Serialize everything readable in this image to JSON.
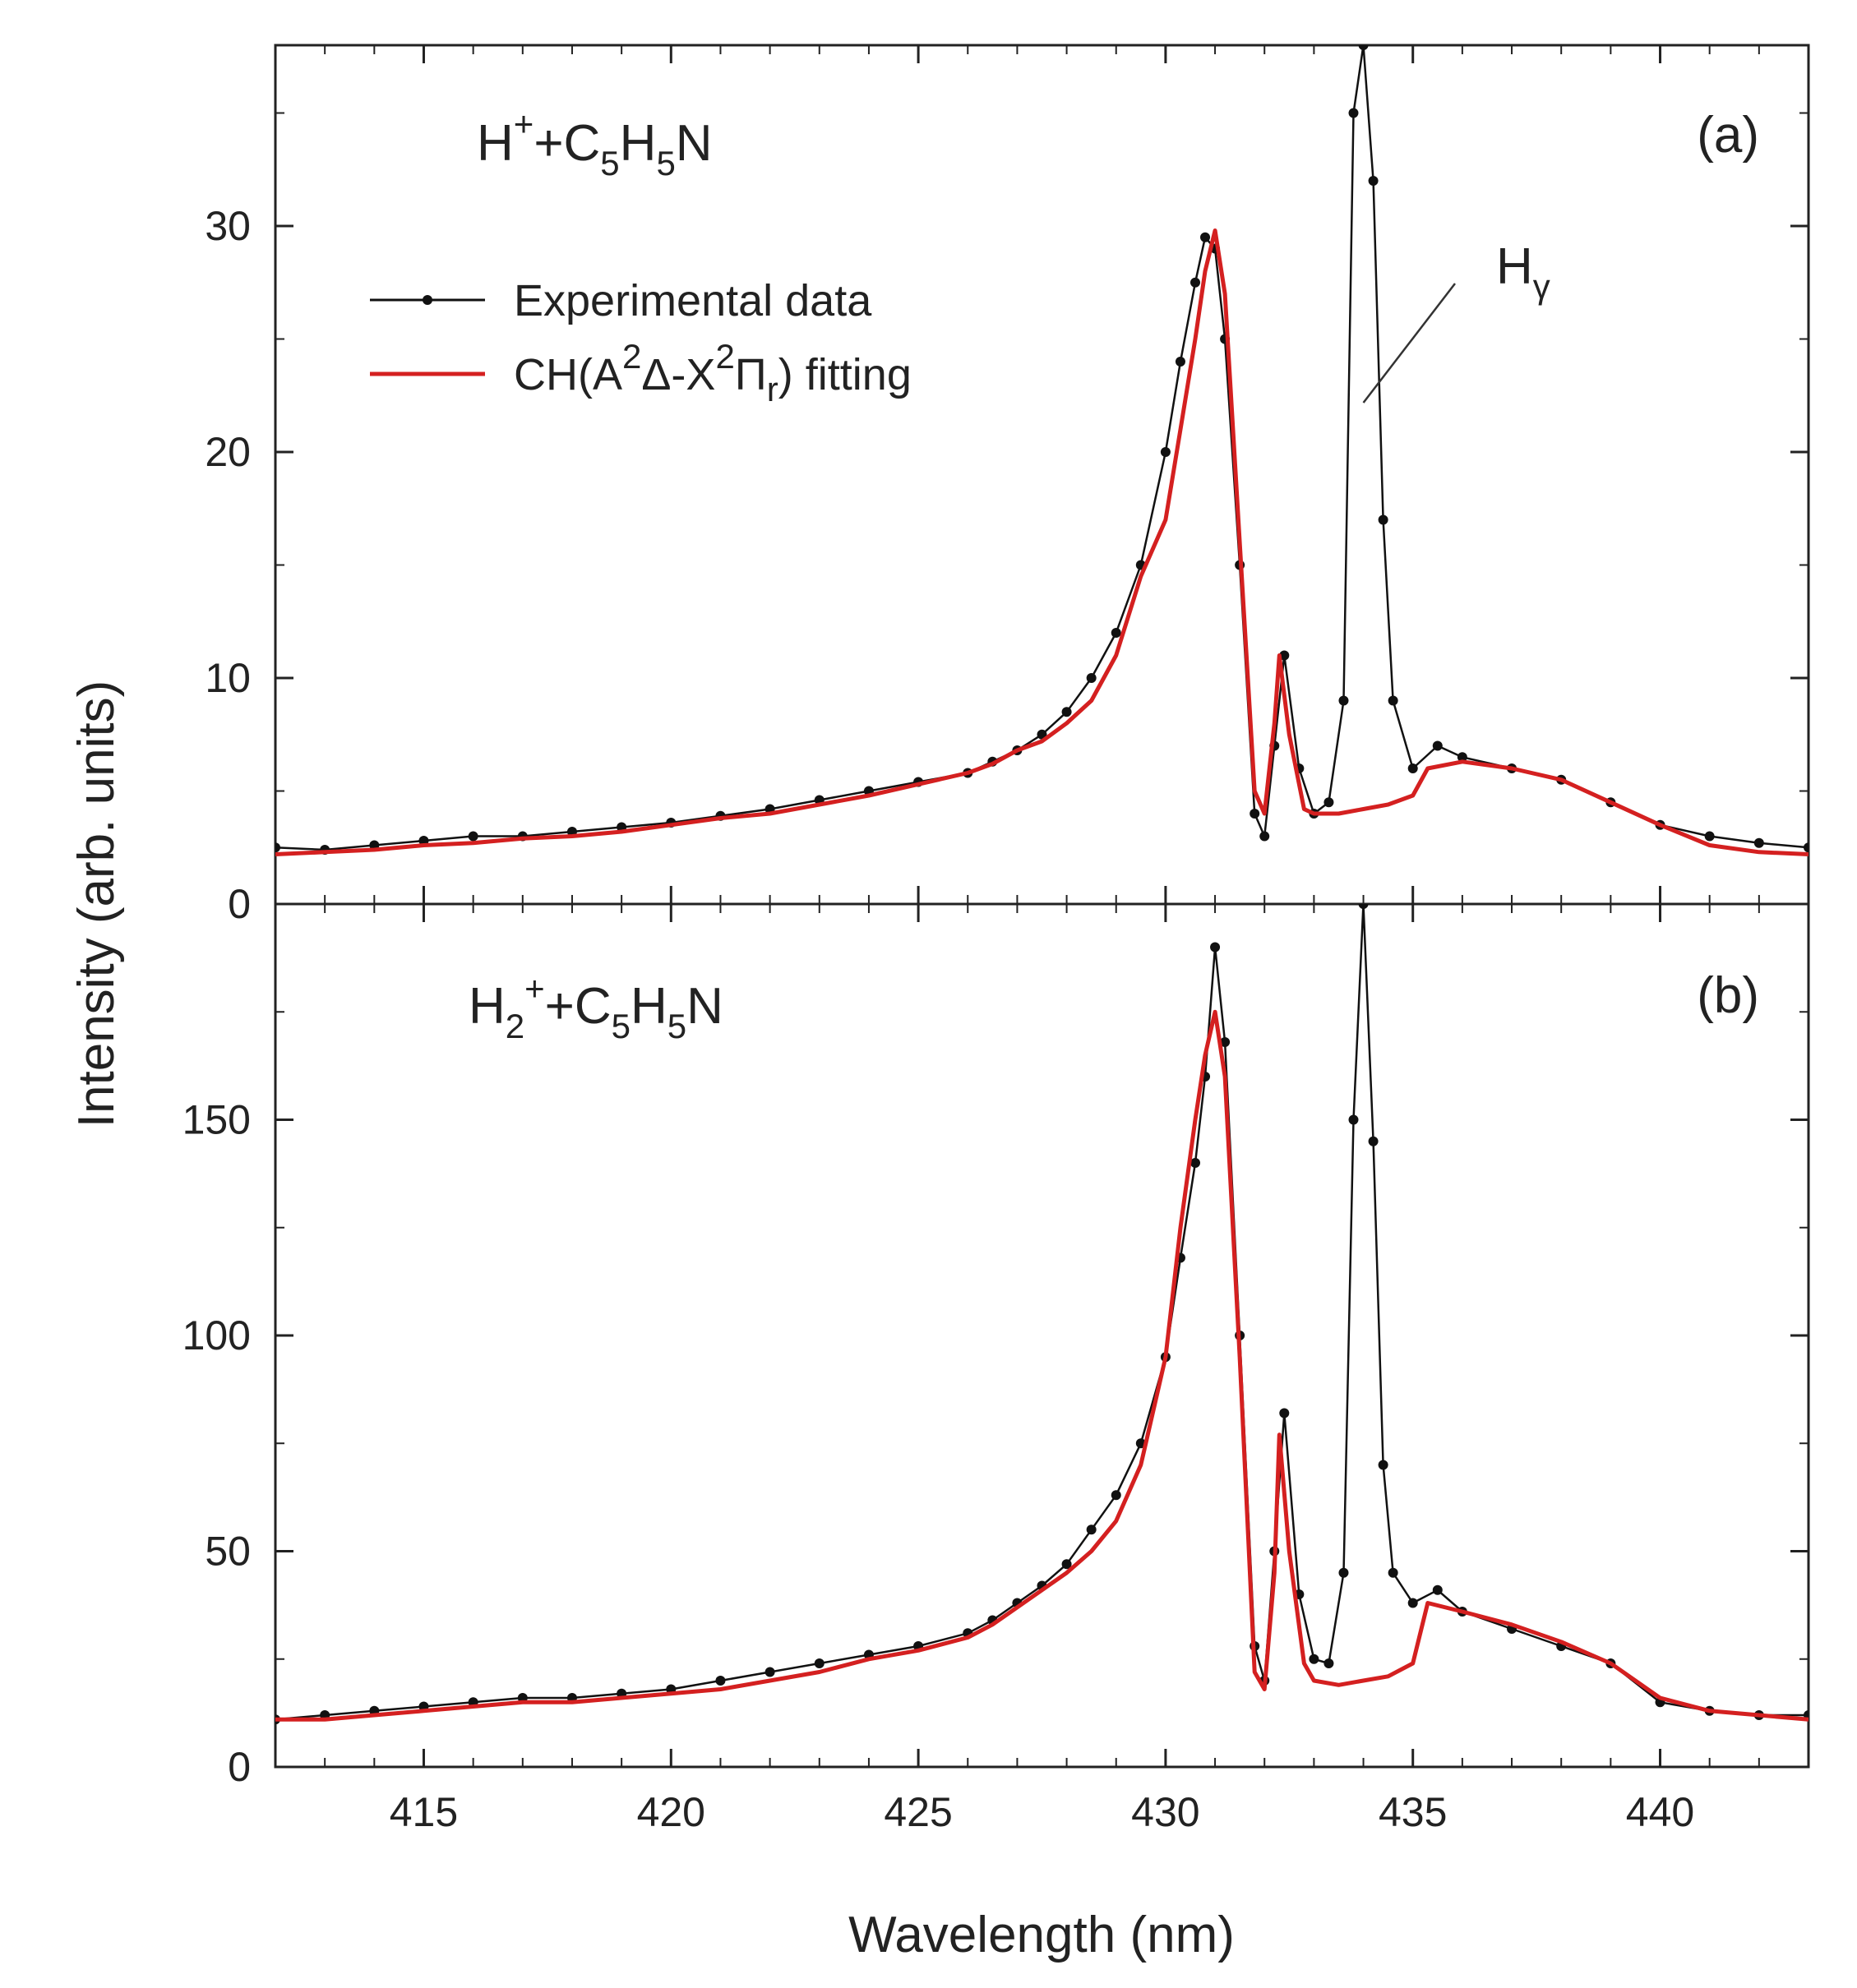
{
  "chart_data": {
    "type": "line",
    "xlabel": "Wavelength (nm)",
    "ylabel": "Intensity (arb. units)",
    "xlim": [
      412,
      443
    ],
    "x_ticks": [
      415,
      420,
      425,
      430,
      435,
      440
    ],
    "legend": {
      "placement": "upper-left of panel (a)",
      "entries": [
        {
          "label": "Experimental data",
          "color": "#111111",
          "style": "line-with-dot-markers"
        },
        {
          "label_parts": [
            "CH(A",
            "2",
            "Δ-X",
            "2",
            "Π",
            "r",
            ") fitting"
          ],
          "color": "#d42020",
          "style": "line"
        }
      ]
    },
    "annotation": {
      "label": "H",
      "subscript": "γ",
      "points_to_x": 434.0
    },
    "panels": [
      {
        "id": "a",
        "label": "(a)",
        "formula_parts": [
          "H",
          "+",
          "+C",
          "5",
          "H",
          "5",
          "N"
        ],
        "ylim": [
          0,
          38
        ],
        "y_ticks": [
          0,
          10,
          20,
          30
        ],
        "series": [
          {
            "name": "Experimental data",
            "color": "#111111",
            "x": [
              412.0,
              413.0,
              414.0,
              415.0,
              416.0,
              417.0,
              418.0,
              419.0,
              420.0,
              421.0,
              422.0,
              423.0,
              424.0,
              425.0,
              426.0,
              426.5,
              427.0,
              427.5,
              428.0,
              428.5,
              429.0,
              429.5,
              430.0,
              430.3,
              430.6,
              430.8,
              431.0,
              431.2,
              431.5,
              431.8,
              432.0,
              432.2,
              432.4,
              432.7,
              433.0,
              433.3,
              433.6,
              433.8,
              434.0,
              434.2,
              434.4,
              434.6,
              435.0,
              435.5,
              436.0,
              437.0,
              438.0,
              439.0,
              440.0,
              441.0,
              442.0,
              443.0
            ],
            "y": [
              2.5,
              2.4,
              2.6,
              2.8,
              3.0,
              3.0,
              3.2,
              3.4,
              3.6,
              3.9,
              4.2,
              4.6,
              5.0,
              5.4,
              5.8,
              6.3,
              6.8,
              7.5,
              8.5,
              10.0,
              12.0,
              15.0,
              20.0,
              24.0,
              27.5,
              29.5,
              29.0,
              25.0,
              15.0,
              4.0,
              3.0,
              7.0,
              11.0,
              6.0,
              4.0,
              4.5,
              9.0,
              35.0,
              38.0,
              32.0,
              17.0,
              9.0,
              6.0,
              7.0,
              6.5,
              6.0,
              5.5,
              4.5,
              3.5,
              3.0,
              2.7,
              2.5
            ]
          },
          {
            "name": "CH(A2Δ-X2Πr) fitting",
            "color": "#d42020",
            "x": [
              412.0,
              413.0,
              414.0,
              415.0,
              416.0,
              417.0,
              418.0,
              419.0,
              420.0,
              421.0,
              422.0,
              423.0,
              424.0,
              425.0,
              426.0,
              426.5,
              427.0,
              427.5,
              428.0,
              428.5,
              429.0,
              429.5,
              430.0,
              430.3,
              430.6,
              430.8,
              431.0,
              431.2,
              431.5,
              431.8,
              432.0,
              432.2,
              432.3,
              432.5,
              432.8,
              433.0,
              433.5,
              434.0,
              434.5,
              435.0,
              435.3,
              436.0,
              437.0,
              438.0,
              439.0,
              440.0,
              441.0,
              442.0,
              443.0
            ],
            "y": [
              2.2,
              2.3,
              2.4,
              2.6,
              2.7,
              2.9,
              3.0,
              3.2,
              3.5,
              3.8,
              4.0,
              4.4,
              4.8,
              5.3,
              5.8,
              6.2,
              6.8,
              7.2,
              8.0,
              9.0,
              11.0,
              14.5,
              17.0,
              21.0,
              25.0,
              28.0,
              29.8,
              27.0,
              16.0,
              5.0,
              4.0,
              8.0,
              11.0,
              7.5,
              4.2,
              4.0,
              4.0,
              4.2,
              4.4,
              4.8,
              6.0,
              6.3,
              6.0,
              5.5,
              4.5,
              3.5,
              2.6,
              2.3,
              2.2
            ]
          }
        ]
      },
      {
        "id": "b",
        "label": "(b)",
        "formula_parts": [
          "H",
          "2",
          "+",
          "+C",
          "5",
          "H",
          "5",
          "N"
        ],
        "ylim": [
          0,
          200
        ],
        "y_ticks": [
          0,
          50,
          100,
          150
        ],
        "series": [
          {
            "name": "Experimental data",
            "color": "#111111",
            "x": [
              412.0,
              413.0,
              414.0,
              415.0,
              416.0,
              417.0,
              418.0,
              419.0,
              420.0,
              421.0,
              422.0,
              423.0,
              424.0,
              425.0,
              426.0,
              426.5,
              427.0,
              427.5,
              428.0,
              428.5,
              429.0,
              429.5,
              430.0,
              430.3,
              430.6,
              430.8,
              431.0,
              431.2,
              431.5,
              431.8,
              432.0,
              432.2,
              432.4,
              432.7,
              433.0,
              433.3,
              433.6,
              433.8,
              434.0,
              434.2,
              434.4,
              434.6,
              435.0,
              435.5,
              436.0,
              437.0,
              438.0,
              439.0,
              440.0,
              441.0,
              442.0,
              443.0
            ],
            "y": [
              11,
              12,
              13,
              14,
              15,
              16,
              16,
              17,
              18,
              20,
              22,
              24,
              26,
              28,
              31,
              34,
              38,
              42,
              47,
              55,
              63,
              75,
              95,
              118,
              140,
              160,
              190,
              168,
              100,
              28,
              20,
              50,
              82,
              40,
              25,
              24,
              45,
              150,
              200,
              145,
              70,
              45,
              38,
              41,
              36,
              32,
              28,
              24,
              15,
              13,
              12,
              12
            ]
          },
          {
            "name": "CH(A2Δ-X2Πr) fitting",
            "color": "#d42020",
            "x": [
              412.0,
              413.0,
              414.0,
              415.0,
              416.0,
              417.0,
              418.0,
              419.0,
              420.0,
              421.0,
              422.0,
              423.0,
              424.0,
              425.0,
              426.0,
              426.5,
              427.0,
              427.5,
              428.0,
              428.5,
              429.0,
              429.5,
              430.0,
              430.3,
              430.6,
              430.8,
              431.0,
              431.2,
              431.5,
              431.8,
              432.0,
              432.2,
              432.3,
              432.5,
              432.8,
              433.0,
              433.5,
              434.0,
              434.5,
              435.0,
              435.3,
              436.0,
              437.0,
              438.0,
              439.0,
              440.0,
              441.0,
              442.0,
              443.0
            ],
            "y": [
              11,
              11,
              12,
              13,
              14,
              15,
              15,
              16,
              17,
              18,
              20,
              22,
              25,
              27,
              30,
              33,
              37,
              41,
              45,
              50,
              57,
              70,
              95,
              125,
              150,
              165,
              175,
              160,
              95,
              22,
              18,
              45,
              77,
              50,
              24,
              20,
              19,
              20,
              21,
              24,
              38,
              36,
              33,
              29,
              24,
              16,
              13,
              12,
              11
            ]
          }
        ]
      }
    ]
  }
}
